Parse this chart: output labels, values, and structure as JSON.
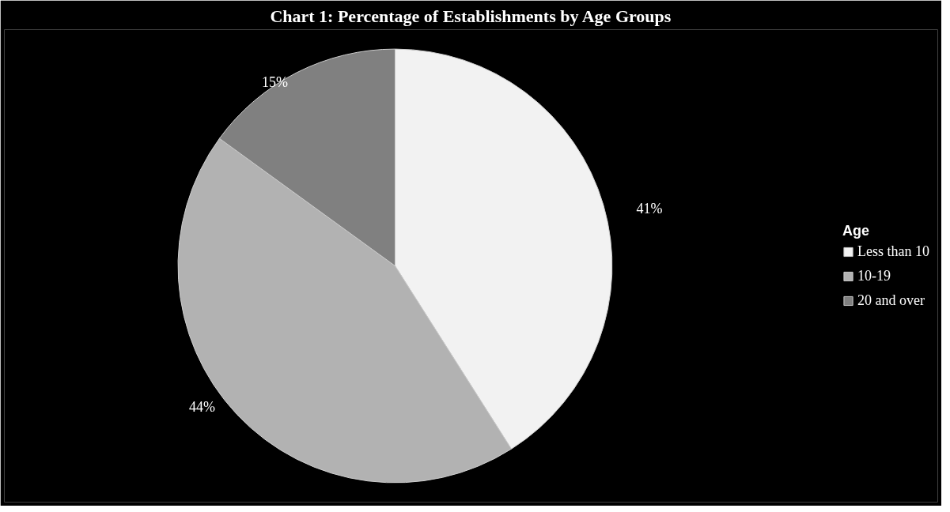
{
  "chart_data": {
    "type": "pie",
    "title": "Chart 1: Percentage of Establishments by Age Groups",
    "legend_title": "Age",
    "categories": [
      "Less than 10",
      "10-19",
      "20 and over"
    ],
    "values": [
      41,
      44,
      15
    ],
    "colors": [
      "#f2f2f2",
      "#b2b2b2",
      "#808080"
    ],
    "value_labels": [
      "41%",
      "44%",
      "15%"
    ],
    "legend": "right"
  }
}
